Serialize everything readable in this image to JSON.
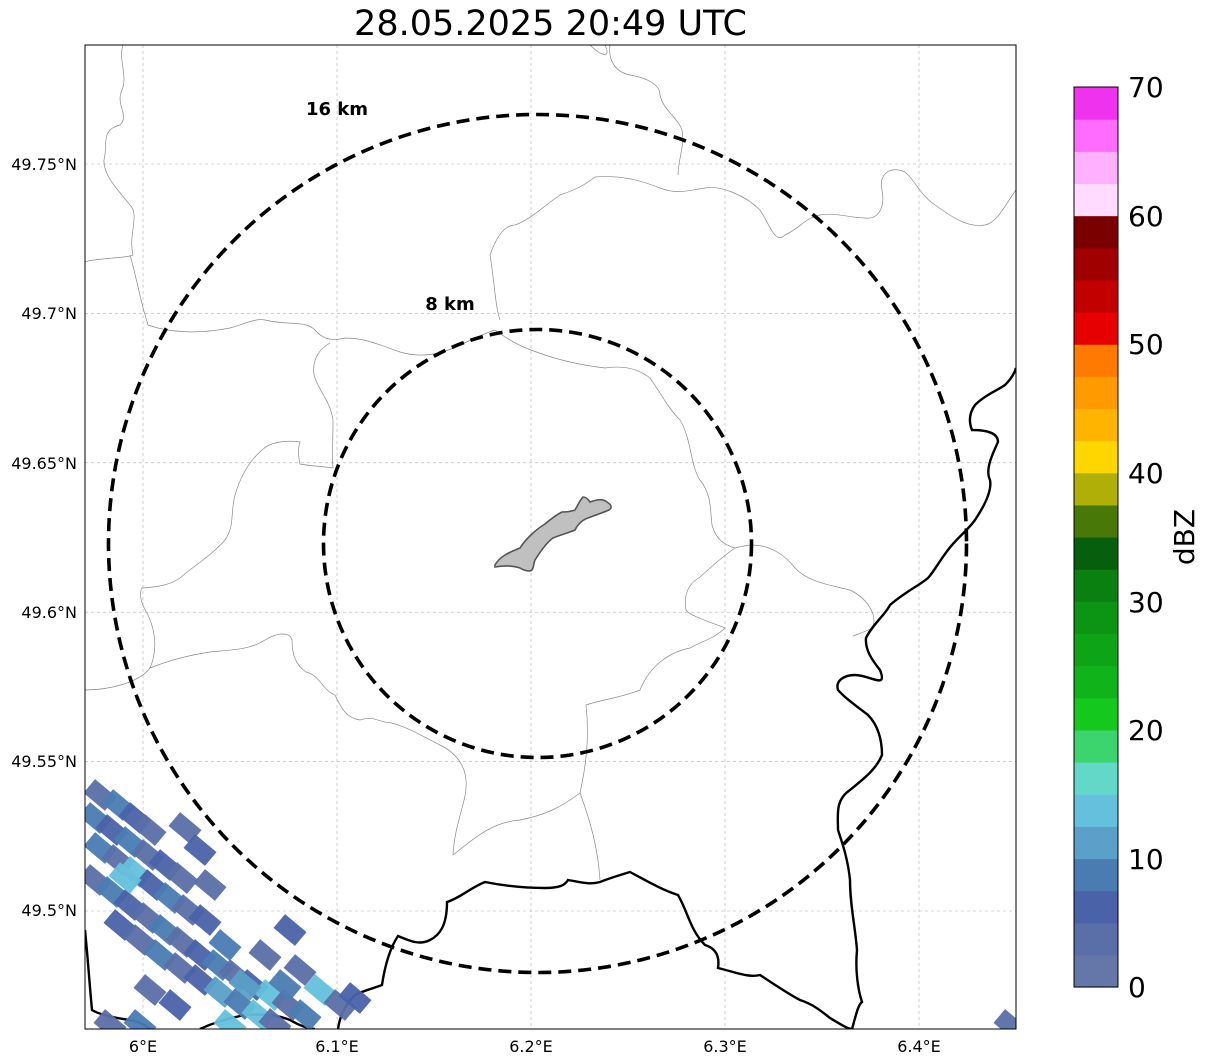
{
  "title": "28.05.2025 20:49 UTC",
  "map": {
    "lon_range": [
      5.97,
      6.45
    ],
    "lat_range": [
      49.46,
      49.79
    ],
    "lon_ticks": [
      {
        "value": 6.0,
        "label": "6°E"
      },
      {
        "value": 6.1,
        "label": "6.1°E"
      },
      {
        "value": 6.2,
        "label": "6.2°E"
      },
      {
        "value": 6.3,
        "label": "6.3°E"
      },
      {
        "value": 6.4,
        "label": "6.4°E"
      }
    ],
    "lat_ticks": [
      {
        "value": 49.75,
        "label": "49.75°N"
      },
      {
        "value": 49.7,
        "label": "49.7°N"
      },
      {
        "value": 49.65,
        "label": "49.65°N"
      },
      {
        "value": 49.6,
        "label": "49.6°N"
      },
      {
        "value": 49.55,
        "label": "49.55°N"
      },
      {
        "value": 49.5,
        "label": "49.5°N"
      }
    ],
    "gridlines": true,
    "center": {
      "lon": 6.202,
      "lat": 49.623
    },
    "range_rings": [
      {
        "radius_km": 8,
        "label": "8 km"
      },
      {
        "radius_km": 16,
        "label": "16 km"
      }
    ],
    "radar_feature_color": "#c0c0c0"
  },
  "colorbar": {
    "label": "dBZ",
    "min": 0,
    "max": 70,
    "ticks": [
      {
        "value": 0,
        "label": "0"
      },
      {
        "value": 10,
        "label": "10"
      },
      {
        "value": 20,
        "label": "20"
      },
      {
        "value": 30,
        "label": "30"
      },
      {
        "value": 40,
        "label": "40"
      },
      {
        "value": 50,
        "label": "50"
      },
      {
        "value": 60,
        "label": "60"
      },
      {
        "value": 70,
        "label": "70"
      }
    ],
    "colors": [
      "#6577a8",
      "#5a6fa8",
      "#4a62a8",
      "#4a7cb2",
      "#5aa0c8",
      "#64c0dc",
      "#64d8c8",
      "#3cd46c",
      "#14c81e",
      "#10b41a",
      "#0ea418",
      "#0c9414",
      "#0a8010",
      "#065f0c",
      "#477808",
      "#aeb008",
      "#ffd600",
      "#ffb400",
      "#ff9a00",
      "#ff7a00",
      "#e60000",
      "#c20000",
      "#a00000",
      "#7a0000",
      "#ffdcff",
      "#ffb0ff",
      "#ff6cff",
      "#ee32ee"
    ]
  }
}
